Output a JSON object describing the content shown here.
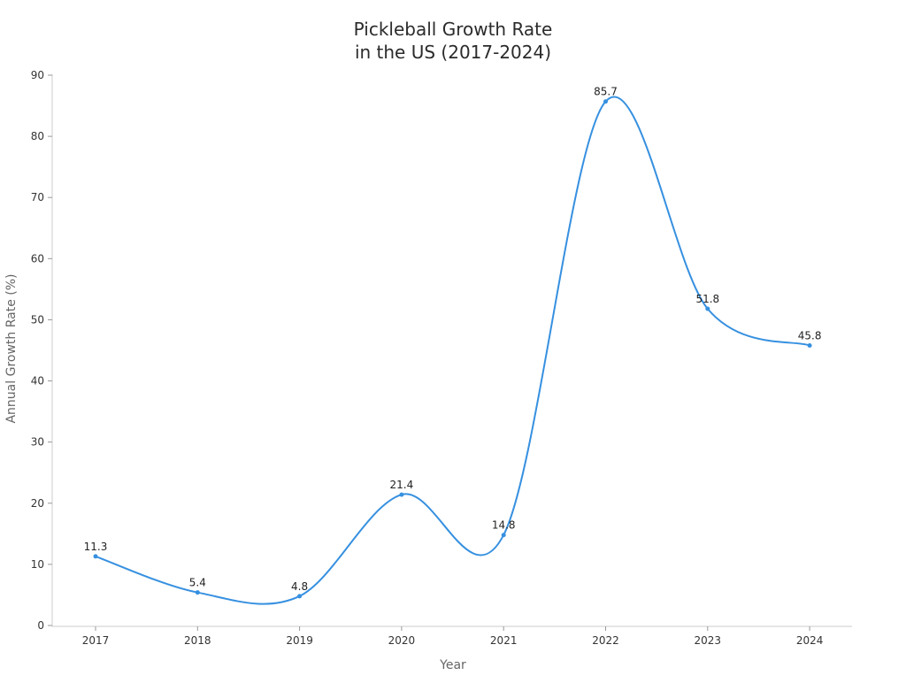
{
  "chart_data": {
    "type": "line",
    "title_line1": "Pickleball Growth Rate",
    "title_line2": "in the US (2017-2024)",
    "xlabel": "Year",
    "ylabel": "Annual Growth Rate (%)",
    "categories": [
      "2017",
      "2018",
      "2019",
      "2020",
      "2021",
      "2022",
      "2023",
      "2024"
    ],
    "values": [
      11.3,
      5.4,
      4.8,
      21.4,
      14.8,
      85.7,
      51.8,
      45.8
    ],
    "data_labels": [
      "11.3",
      "5.4",
      "4.8",
      "21.4",
      "14.8",
      "85.7",
      "51.8",
      "45.8"
    ],
    "ylim": [
      0,
      90
    ],
    "yticks": [
      "0",
      "10",
      "20",
      "30",
      "40",
      "50",
      "60",
      "70",
      "80",
      "90"
    ],
    "grid": false,
    "line_color": "#3690e0",
    "curve": "smooth"
  }
}
